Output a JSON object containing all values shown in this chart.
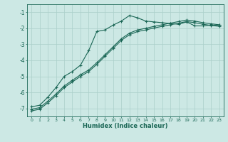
{
  "xlabel": "Humidex (Indice chaleur)",
  "ylabel": "",
  "xlim": [
    -0.5,
    23.5
  ],
  "ylim": [
    -7.5,
    -0.5
  ],
  "yticks": [
    -7,
    -6,
    -5,
    -4,
    -3,
    -2,
    -1
  ],
  "xticks": [
    0,
    1,
    2,
    3,
    4,
    5,
    6,
    7,
    8,
    9,
    10,
    11,
    12,
    13,
    14,
    15,
    16,
    17,
    18,
    19,
    20,
    21,
    22,
    23
  ],
  "bg_color": "#cce8e4",
  "grid_color": "#aacfca",
  "line_color": "#1a6655",
  "line1_x": [
    0,
    1,
    2,
    3,
    4,
    5,
    6,
    7,
    8,
    9,
    10,
    11,
    12,
    13,
    14,
    15,
    16,
    17,
    18,
    19,
    20,
    21,
    22,
    23
  ],
  "line1_y": [
    -6.9,
    -6.8,
    -6.3,
    -5.7,
    -5.0,
    -4.7,
    -4.3,
    -3.4,
    -2.2,
    -2.1,
    -1.8,
    -1.55,
    -1.2,
    -1.35,
    -1.55,
    -1.6,
    -1.65,
    -1.7,
    -1.75,
    -1.6,
    -1.85,
    -1.85,
    -1.8,
    -1.8
  ],
  "line2_x": [
    0,
    1,
    2,
    3,
    4,
    5,
    6,
    7,
    8,
    9,
    10,
    11,
    12,
    13,
    14,
    15,
    16,
    17,
    18,
    19,
    20,
    21,
    22,
    23
  ],
  "line2_y": [
    -7.05,
    -6.95,
    -6.55,
    -6.1,
    -5.6,
    -5.25,
    -4.9,
    -4.6,
    -4.15,
    -3.65,
    -3.15,
    -2.65,
    -2.3,
    -2.1,
    -2.0,
    -1.88,
    -1.78,
    -1.68,
    -1.58,
    -1.48,
    -1.55,
    -1.65,
    -1.72,
    -1.78
  ],
  "line3_x": [
    0,
    1,
    2,
    3,
    4,
    5,
    6,
    7,
    8,
    9,
    10,
    11,
    12,
    13,
    14,
    15,
    16,
    17,
    18,
    19,
    20,
    21,
    22,
    23
  ],
  "line3_y": [
    -7.15,
    -7.05,
    -6.65,
    -6.2,
    -5.7,
    -5.35,
    -5.0,
    -4.7,
    -4.25,
    -3.75,
    -3.25,
    -2.75,
    -2.4,
    -2.2,
    -2.1,
    -1.98,
    -1.88,
    -1.78,
    -1.68,
    -1.58,
    -1.65,
    -1.75,
    -1.82,
    -1.88
  ]
}
